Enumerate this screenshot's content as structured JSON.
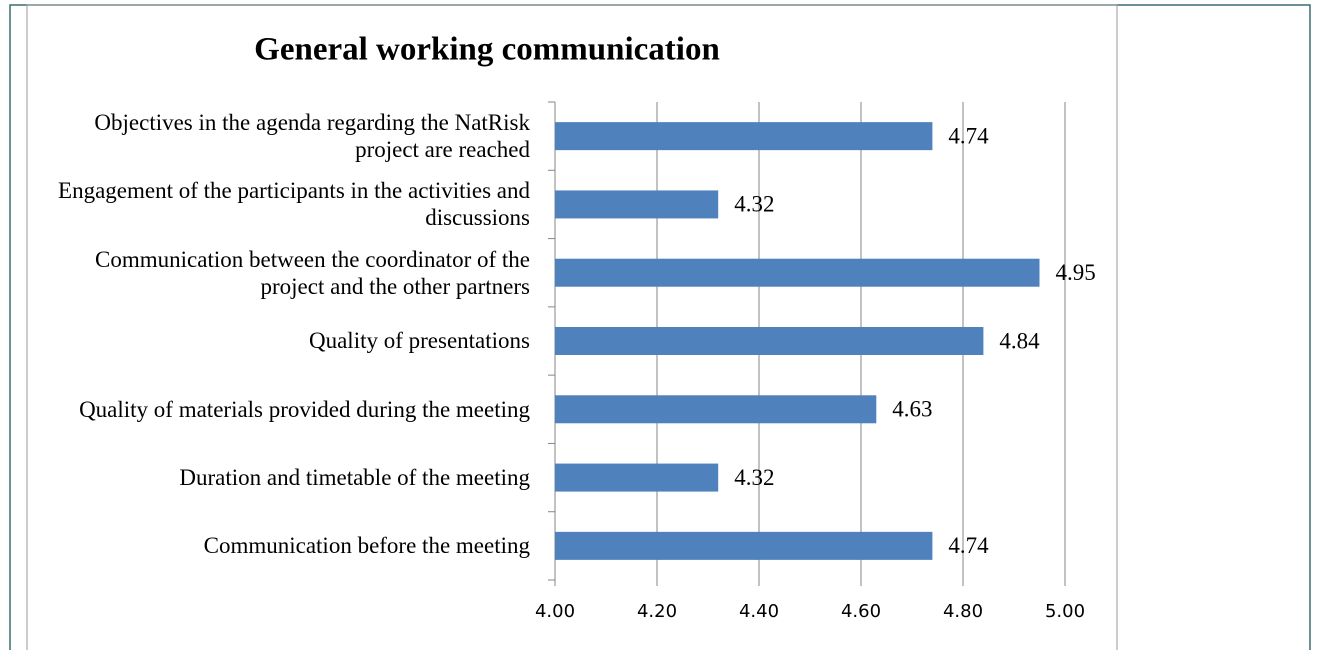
{
  "chart_data": {
    "type": "bar",
    "orientation": "horizontal",
    "title": "General working communication",
    "categories": [
      "Objectives in the agenda regarding the NatRisk project are reached",
      "Engagement of the participants in the activities and discussions",
      "Communication between the coordinator of the project and the other partners",
      "Quality of presentations",
      "Quality of materials provided during the meeting",
      "Duration and timetable of the meeting",
      "Communication before the meeting"
    ],
    "values": [
      4.74,
      4.32,
      4.95,
      4.84,
      4.63,
      4.32,
      4.74
    ],
    "color": "#4f81bd",
    "xlim": [
      4,
      5
    ],
    "xticks": [
      {
        "value": 4,
        "label": "4.00"
      },
      {
        "value": 4.2,
        "label": "4.20"
      },
      {
        "value": 4.4,
        "label": "4.40"
      },
      {
        "value": 4.6,
        "label": "4.60"
      },
      {
        "value": 4.8,
        "label": "4.80"
      },
      {
        "value": 5,
        "label": "5.00"
      }
    ],
    "grid": true
  }
}
